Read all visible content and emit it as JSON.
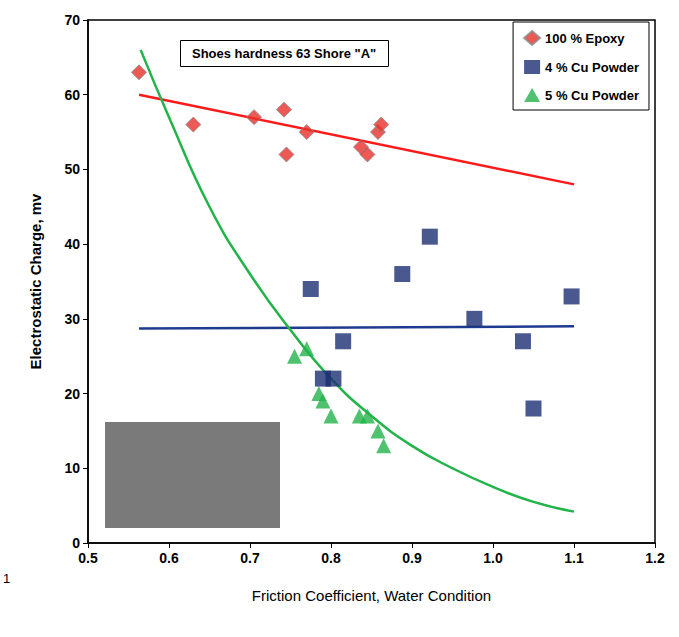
{
  "chart_data": {
    "type": "scatter",
    "title": "Shoes hardness 63 Shore \"A\"",
    "x_label": "Friction Coefficient, Water Condition",
    "y_label": "Electrostatic Charge, mv",
    "annotations": [
      "1"
    ],
    "xlim": [
      0.5,
      1.2
    ],
    "xticks": [
      0.5,
      0.6,
      0.7,
      0.8,
      0.9,
      {
        "value": 1,
        "label": "1.0"
      },
      1.1,
      1.2
    ],
    "ylim": [
      0,
      70
    ],
    "yticks": [
      0,
      10,
      20,
      30,
      40,
      50,
      60,
      70
    ],
    "grid": false,
    "legend": "upper right",
    "series": [
      {
        "name": "100 % Epoxy",
        "color": "#e8312a",
        "marker": "diamond",
        "x": [
          0.563,
          0.63,
          0.705,
          0.742,
          0.745,
          0.77,
          0.837,
          0.845,
          0.858,
          0.862
        ],
        "values": [
          63,
          56,
          57,
          58,
          52,
          55,
          53,
          52,
          55,
          56
        ],
        "trend": {
          "color": "#ff1a1a",
          "x": [
            0.563,
            1.1
          ],
          "values": [
            60,
            48
          ]
        }
      },
      {
        "name": "4 % Cu Powder",
        "color": "#1c2e72",
        "marker": "square",
        "x": [
          0.775,
          0.79,
          0.803,
          0.815,
          0.888,
          0.922,
          0.977,
          1.037,
          1.05,
          1.097
        ],
        "values": [
          34,
          22,
          22,
          27,
          36,
          41,
          30,
          27,
          18,
          33
        ],
        "trend": {
          "color": "#1f3b8f",
          "x": [
            0.563,
            1.1
          ],
          "values": [
            28.7,
            29
          ]
        }
      },
      {
        "name": "5 % Cu Powder",
        "color": "#22b34a",
        "marker": "triangle",
        "x": [
          0.755,
          0.77,
          0.785,
          0.79,
          0.8,
          0.835,
          0.845,
          0.858,
          0.865
        ],
        "values": [
          25,
          26,
          20,
          19,
          17,
          17,
          17,
          15,
          13
        ],
        "trend": {
          "color": "#22b34a",
          "x": [
            0.565,
            0.6,
            0.65,
            0.7,
            0.75,
            0.8,
            0.85,
            0.9,
            0.95,
            1.0,
            1.05,
            1.1
          ],
          "values": [
            66,
            57,
            45,
            36,
            28.5,
            22,
            17,
            13,
            10,
            7.5,
            5.5,
            4.2
          ]
        }
      }
    ]
  }
}
